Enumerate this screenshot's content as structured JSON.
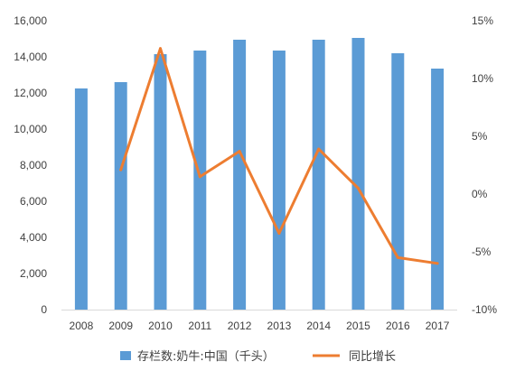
{
  "chart_data": {
    "type": "bar",
    "categories": [
      "2008",
      "2009",
      "2010",
      "2011",
      "2012",
      "2013",
      "2014",
      "2015",
      "2016",
      "2017"
    ],
    "series": [
      {
        "name": "存栏数:奶牛:中国（千头）",
        "type": "bar",
        "axis": "left",
        "color": "#5B9BD5",
        "values": [
          12250,
          12600,
          14150,
          14350,
          14950,
          14350,
          14950,
          15050,
          14200,
          13350
        ]
      },
      {
        "name": "同比增长",
        "type": "line",
        "axis": "right",
        "color": "#ED7D31",
        "values": [
          null,
          2.1,
          12.6,
          1.5,
          3.7,
          -3.4,
          3.9,
          0.5,
          -5.5,
          -6.0
        ]
      }
    ],
    "y_left": {
      "min": 0,
      "max": 16000,
      "step": 2000,
      "tick_labels": [
        "0",
        "2,000",
        "4,000",
        "6,000",
        "8,000",
        "10,000",
        "12,000",
        "14,000",
        "16,000"
      ]
    },
    "y_right": {
      "min": -10,
      "max": 15,
      "step": 5,
      "tick_labels": [
        "-10%",
        "-5%",
        "0%",
        "5%",
        "10%",
        "15%"
      ]
    },
    "title": "",
    "xlabel": "",
    "ylabel": "",
    "grid": false,
    "legend_position": "bottom"
  }
}
